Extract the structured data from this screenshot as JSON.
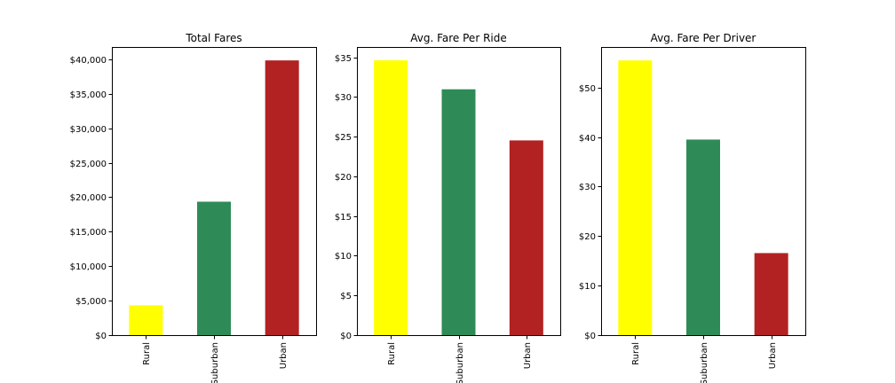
{
  "chart_data": [
    {
      "type": "bar",
      "title": "Total Fares",
      "xlabel": "",
      "ylabel": "",
      "categories": [
        "Rural",
        "Suburban",
        "Urban"
      ],
      "values": [
        4327.93,
        19356.33,
        39854.38
      ],
      "colors": [
        "#ffff00",
        "#2e8b57",
        "#b22222"
      ],
      "ylim": [
        0,
        41800
      ],
      "yticks": [
        0,
        5000,
        10000,
        15000,
        20000,
        25000,
        30000,
        35000,
        40000
      ],
      "ytick_labels": [
        "$0",
        "$5,000",
        "$10,000",
        "$15,000",
        "$20,000",
        "$25,000",
        "$30,000",
        "$35,000",
        "$40,000"
      ],
      "grid": false,
      "legend": "none"
    },
    {
      "type": "bar",
      "title": "Avg. Fare Per Ride",
      "xlabel": "",
      "ylabel": "",
      "categories": [
        "Rural",
        "Suburban",
        "Urban"
      ],
      "values": [
        34.62,
        30.97,
        24.53
      ],
      "colors": [
        "#ffff00",
        "#2e8b57",
        "#b22222"
      ],
      "ylim": [
        0,
        36.3
      ],
      "yticks": [
        0,
        5,
        10,
        15,
        20,
        25,
        30,
        35
      ],
      "ytick_labels": [
        "$0",
        "$5",
        "$10",
        "$15",
        "$20",
        "$25",
        "$30",
        "$35"
      ],
      "grid": false,
      "legend": "none"
    },
    {
      "type": "bar",
      "title": "Avg. Fare Per Driver",
      "xlabel": "",
      "ylabel": "",
      "categories": [
        "Rural",
        "Suburban",
        "Urban"
      ],
      "values": [
        55.49,
        39.5,
        16.57
      ],
      "colors": [
        "#ffff00",
        "#2e8b57",
        "#b22222"
      ],
      "ylim": [
        0,
        58.2
      ],
      "yticks": [
        0,
        10,
        20,
        30,
        40,
        50
      ],
      "ytick_labels": [
        "$0",
        "$10",
        "$20",
        "$30",
        "$40",
        "$50"
      ],
      "grid": false,
      "legend": "none"
    }
  ]
}
